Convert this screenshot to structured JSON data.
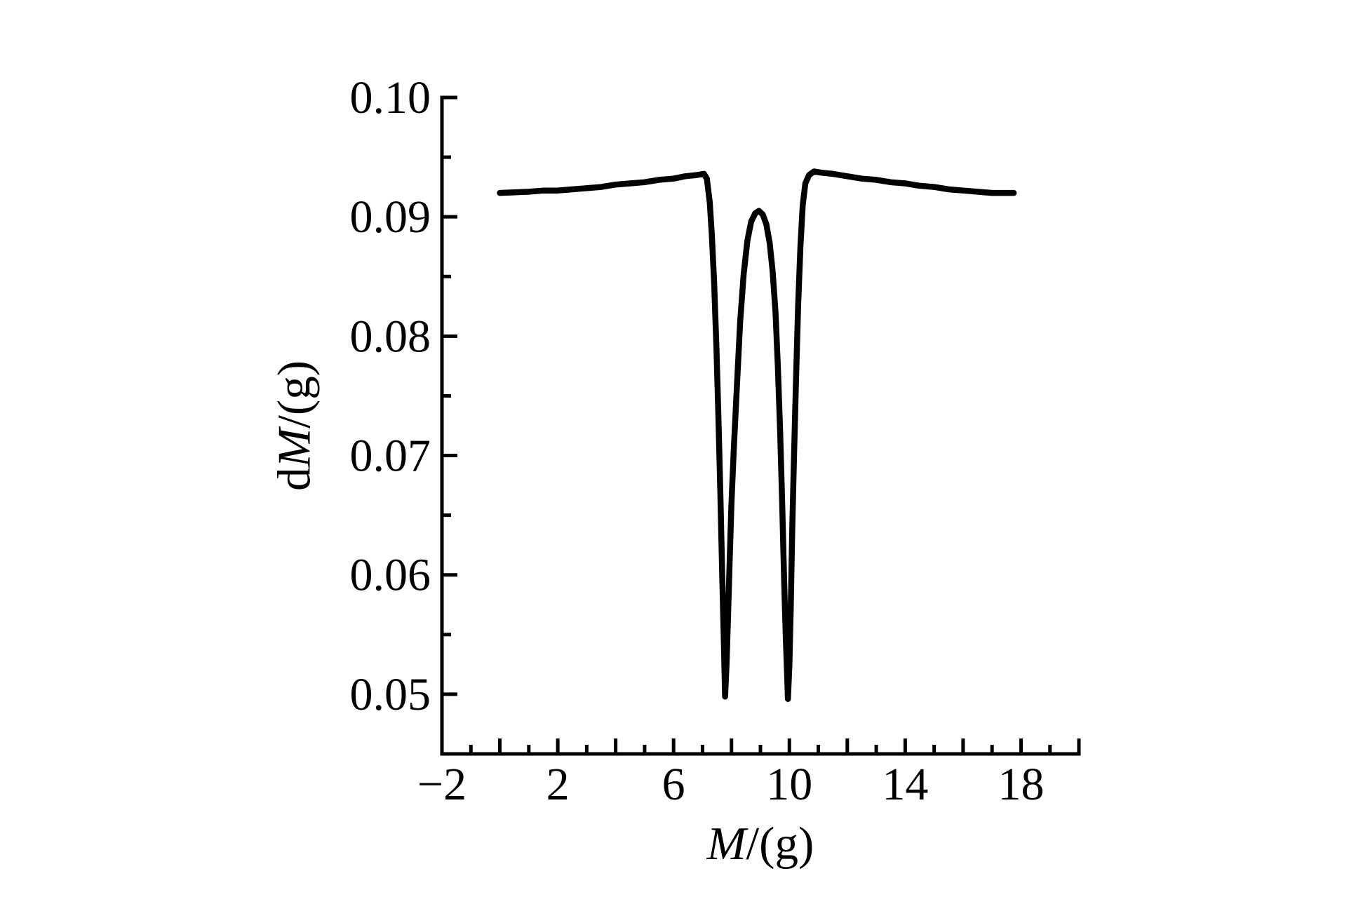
{
  "figure": {
    "background": "#ffffff",
    "ink_color": "#000000"
  },
  "chart_data": {
    "type": "line",
    "title": "",
    "xlabel": "M/(g)",
    "ylabel": "dM/(g)",
    "xlabel_parts": [
      {
        "text": "M",
        "italic": true
      },
      {
        "text": "/(g)",
        "italic": false
      }
    ],
    "ylabel_parts": [
      {
        "text": "d",
        "italic": false
      },
      {
        "text": "M",
        "italic": true
      },
      {
        "text": "/(g)",
        "italic": false
      }
    ],
    "grid": false,
    "legend": false,
    "x_axis": {
      "range": [
        -2,
        20
      ],
      "major_tick_step": 2,
      "minor_tick_step": 1,
      "major_ticks": [
        -2,
        0,
        2,
        4,
        6,
        8,
        10,
        12,
        14,
        16,
        18,
        20
      ],
      "minor_ticks": [
        -1,
        1,
        3,
        5,
        7,
        9,
        11,
        13,
        15,
        17,
        19
      ],
      "tick_labels": [
        {
          "value": -2,
          "label": "−2"
        },
        {
          "value": 2,
          "label": "2"
        },
        {
          "value": 6,
          "label": "6"
        },
        {
          "value": 10,
          "label": "10"
        },
        {
          "value": 14,
          "label": "14"
        },
        {
          "value": 18,
          "label": "18"
        }
      ]
    },
    "y_axis": {
      "range": [
        0.045,
        0.1
      ],
      "major_ticks": [
        0.05,
        0.06,
        0.07,
        0.08,
        0.09,
        0.1
      ],
      "minor_ticks": [
        0.045,
        0.055,
        0.065,
        0.075,
        0.085,
        0.095
      ],
      "tick_labels": [
        {
          "value": 0.05,
          "label": "0.05"
        },
        {
          "value": 0.06,
          "label": "0.06"
        },
        {
          "value": 0.07,
          "label": "0.07"
        },
        {
          "value": 0.08,
          "label": "0.08"
        },
        {
          "value": 0.09,
          "label": "0.09"
        },
        {
          "value": 0.1,
          "label": "0.10"
        }
      ]
    },
    "key_features": {
      "baseline_level": 0.092,
      "left_shoulder_peak": {
        "x": 7.0,
        "y": 0.0936
      },
      "dip1_min": {
        "x": 7.8,
        "y": 0.0498
      },
      "middle_peak": {
        "x": 8.95,
        "y": 0.0905
      },
      "dip2_min": {
        "x": 9.95,
        "y": 0.0496
      },
      "right_shoulder_peak": {
        "x": 10.85,
        "y": 0.0938
      },
      "curve_x_extent": [
        0,
        17.75
      ]
    },
    "series": [
      {
        "name": "dM-curve",
        "color": "#000000",
        "line_width": 8.5,
        "points": [
          [
            0,
            0.092
          ],
          [
            0.5,
            0.09205
          ],
          [
            1,
            0.0921
          ],
          [
            1.5,
            0.0922
          ],
          [
            2,
            0.0922
          ],
          [
            2.5,
            0.0923
          ],
          [
            3,
            0.0924
          ],
          [
            3.5,
            0.0925
          ],
          [
            4,
            0.0927
          ],
          [
            4.5,
            0.0928
          ],
          [
            5,
            0.0929
          ],
          [
            5.5,
            0.0931
          ],
          [
            6,
            0.0932
          ],
          [
            6.4,
            0.0934
          ],
          [
            6.8,
            0.0935
          ],
          [
            7.05,
            0.0936
          ],
          [
            7.15,
            0.0932
          ],
          [
            7.25,
            0.0912
          ],
          [
            7.32,
            0.0885
          ],
          [
            7.4,
            0.0845
          ],
          [
            7.48,
            0.079
          ],
          [
            7.55,
            0.073
          ],
          [
            7.62,
            0.0665
          ],
          [
            7.68,
            0.06
          ],
          [
            7.73,
            0.055
          ],
          [
            7.78,
            0.0498
          ],
          [
            7.83,
            0.0525
          ],
          [
            7.88,
            0.0565
          ],
          [
            7.94,
            0.0615
          ],
          [
            8.0,
            0.066
          ],
          [
            8.08,
            0.0705
          ],
          [
            8.18,
            0.0755
          ],
          [
            8.3,
            0.0812
          ],
          [
            8.42,
            0.0852
          ],
          [
            8.55,
            0.088
          ],
          [
            8.68,
            0.0896
          ],
          [
            8.82,
            0.0903
          ],
          [
            8.95,
            0.0905
          ],
          [
            9.08,
            0.0902
          ],
          [
            9.2,
            0.0894
          ],
          [
            9.32,
            0.0878
          ],
          [
            9.42,
            0.0855
          ],
          [
            9.52,
            0.082
          ],
          [
            9.6,
            0.0775
          ],
          [
            9.68,
            0.072
          ],
          [
            9.75,
            0.066
          ],
          [
            9.82,
            0.0595
          ],
          [
            9.88,
            0.0545
          ],
          [
            9.95,
            0.0496
          ],
          [
            10.0,
            0.0525
          ],
          [
            10.05,
            0.0575
          ],
          [
            10.1,
            0.064
          ],
          [
            10.16,
            0.07
          ],
          [
            10.23,
            0.0765
          ],
          [
            10.3,
            0.0825
          ],
          [
            10.38,
            0.0875
          ],
          [
            10.46,
            0.091
          ],
          [
            10.55,
            0.0928
          ],
          [
            10.68,
            0.0935
          ],
          [
            10.85,
            0.0938
          ],
          [
            11.1,
            0.0937
          ],
          [
            11.5,
            0.0936
          ],
          [
            12,
            0.0934
          ],
          [
            12.5,
            0.0932
          ],
          [
            13,
            0.0931
          ],
          [
            13.5,
            0.0929
          ],
          [
            14,
            0.0928
          ],
          [
            14.5,
            0.0926
          ],
          [
            15,
            0.0925
          ],
          [
            15.5,
            0.0923
          ],
          [
            16,
            0.0922
          ],
          [
            16.5,
            0.0921
          ],
          [
            17,
            0.092
          ],
          [
            17.4,
            0.092
          ],
          [
            17.75,
            0.092
          ]
        ]
      }
    ]
  }
}
